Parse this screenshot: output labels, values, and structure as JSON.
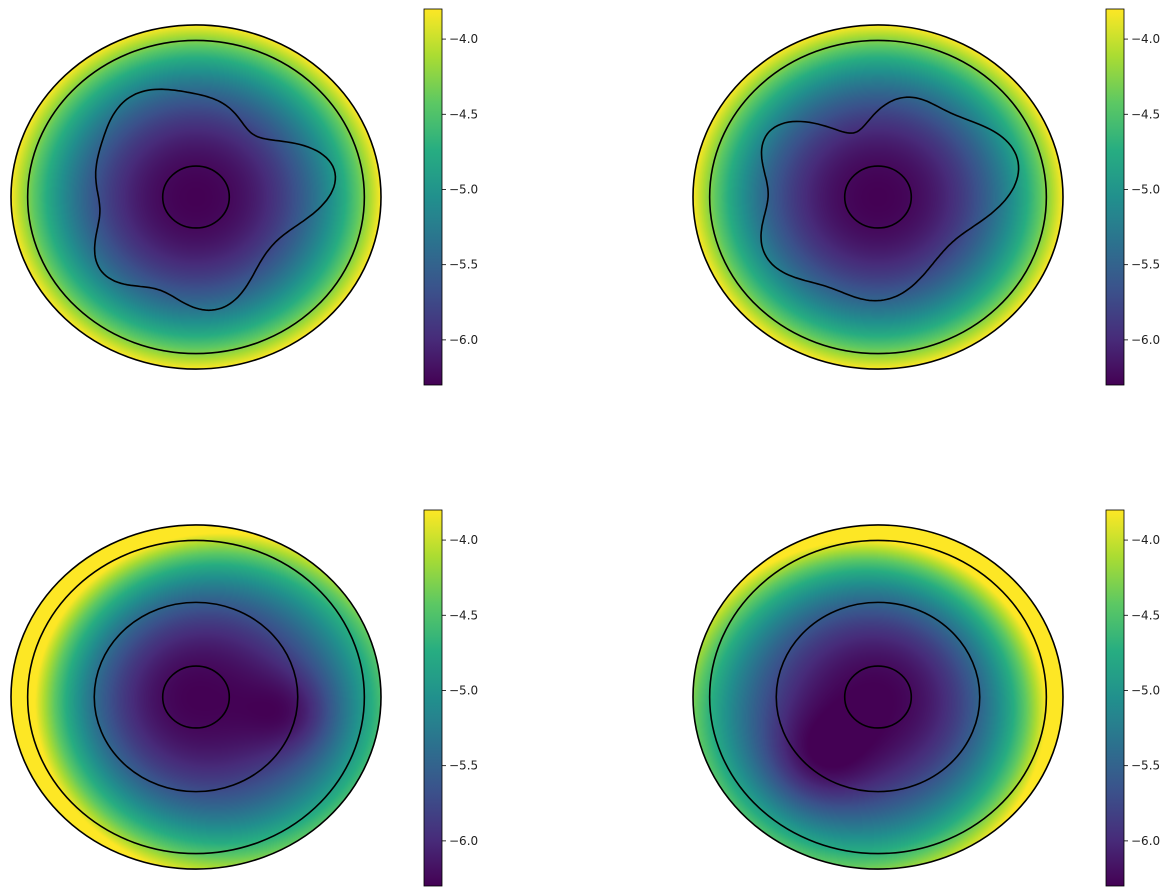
{
  "chart_data": [
    {
      "type": "heatmap",
      "shape": "disk",
      "colormap": "viridis",
      "colorbar": {
        "min": -6.3,
        "max": -3.8,
        "ticks": [
          -4.0,
          -4.5,
          -5.0,
          -5.5,
          -6.0
        ],
        "tick_labels": [
          "−4.0",
          "−4.5",
          "−5.0",
          "−5.5",
          "−6.0"
        ]
      },
      "field": {
        "inner_value": -6.3,
        "outer_value": -3.8,
        "dark_offset": [
          0.0,
          0.0
        ],
        "lobes": []
      },
      "contours": [
        {
          "shape": "circle",
          "r": 0.18
        },
        {
          "shape": "blob",
          "r": 0.6,
          "harmonics": [
            [
              3,
              0.07,
              0.3
            ],
            [
              4,
              0.05,
              1.1
            ],
            [
              5,
              0.04,
              0.4
            ],
            [
              7,
              0.02,
              2.0
            ]
          ]
        },
        {
          "shape": "circle",
          "r": 0.91
        }
      ]
    },
    {
      "type": "heatmap",
      "shape": "disk",
      "colormap": "viridis",
      "colorbar": {
        "min": -6.3,
        "max": -3.8,
        "ticks": [
          -4.0,
          -4.5,
          -5.0,
          -5.5,
          -6.0
        ],
        "tick_labels": [
          "−4.0",
          "−4.5",
          "−5.0",
          "−5.5",
          "−6.0"
        ]
      },
      "field": {
        "inner_value": -6.3,
        "outer_value": -3.8,
        "dark_offset": [
          0.0,
          0.0
        ],
        "lobes": []
      },
      "contours": [
        {
          "shape": "circle",
          "r": 0.18
        },
        {
          "shape": "blob",
          "r": 0.6,
          "harmonics": [
            [
              2,
              0.1,
              0.8
            ],
            [
              3,
              0.06,
              1.5
            ],
            [
              5,
              0.05,
              0.2
            ],
            [
              6,
              0.03,
              2.4
            ]
          ]
        },
        {
          "shape": "circle",
          "r": 0.91
        }
      ]
    },
    {
      "type": "heatmap",
      "shape": "disk",
      "colormap": "viridis",
      "colorbar": {
        "min": -6.3,
        "max": -3.8,
        "ticks": [
          -4.0,
          -4.5,
          -5.0,
          -5.5,
          -6.0
        ],
        "tick_labels": [
          "−4.0",
          "−4.5",
          "−5.0",
          "−5.5",
          "−6.0"
        ]
      },
      "field": {
        "inner_value": -6.3,
        "outer_value": -3.8,
        "dark_offset": [
          0.15,
          0.05
        ],
        "lobes": [
          {
            "x": 0.55,
            "y": 0.1,
            "r": 0.25,
            "depth": 0.35
          }
        ]
      },
      "contours": [
        {
          "shape": "circle",
          "r": 0.18
        },
        {
          "shape": "circle",
          "r": 0.55
        },
        {
          "shape": "circle",
          "r": 0.91
        }
      ]
    },
    {
      "type": "heatmap",
      "shape": "disk",
      "colormap": "viridis",
      "colorbar": {
        "min": -6.3,
        "max": -3.8,
        "ticks": [
          -4.0,
          -4.5,
          -5.0,
          -5.5,
          -6.0
        ],
        "tick_labels": [
          "−4.0",
          "−4.5",
          "−5.0",
          "−5.5",
          "−6.0"
        ]
      },
      "field": {
        "inner_value": -6.3,
        "outer_value": -3.8,
        "dark_offset": [
          -0.1,
          0.1
        ],
        "lobes": [
          {
            "x": -0.35,
            "y": 0.4,
            "r": 0.3,
            "depth": 0.4
          }
        ]
      },
      "contours": [
        {
          "shape": "circle",
          "r": 0.18
        },
        {
          "shape": "circle",
          "r": 0.55
        },
        {
          "shape": "circle",
          "r": 0.91
        }
      ]
    }
  ]
}
